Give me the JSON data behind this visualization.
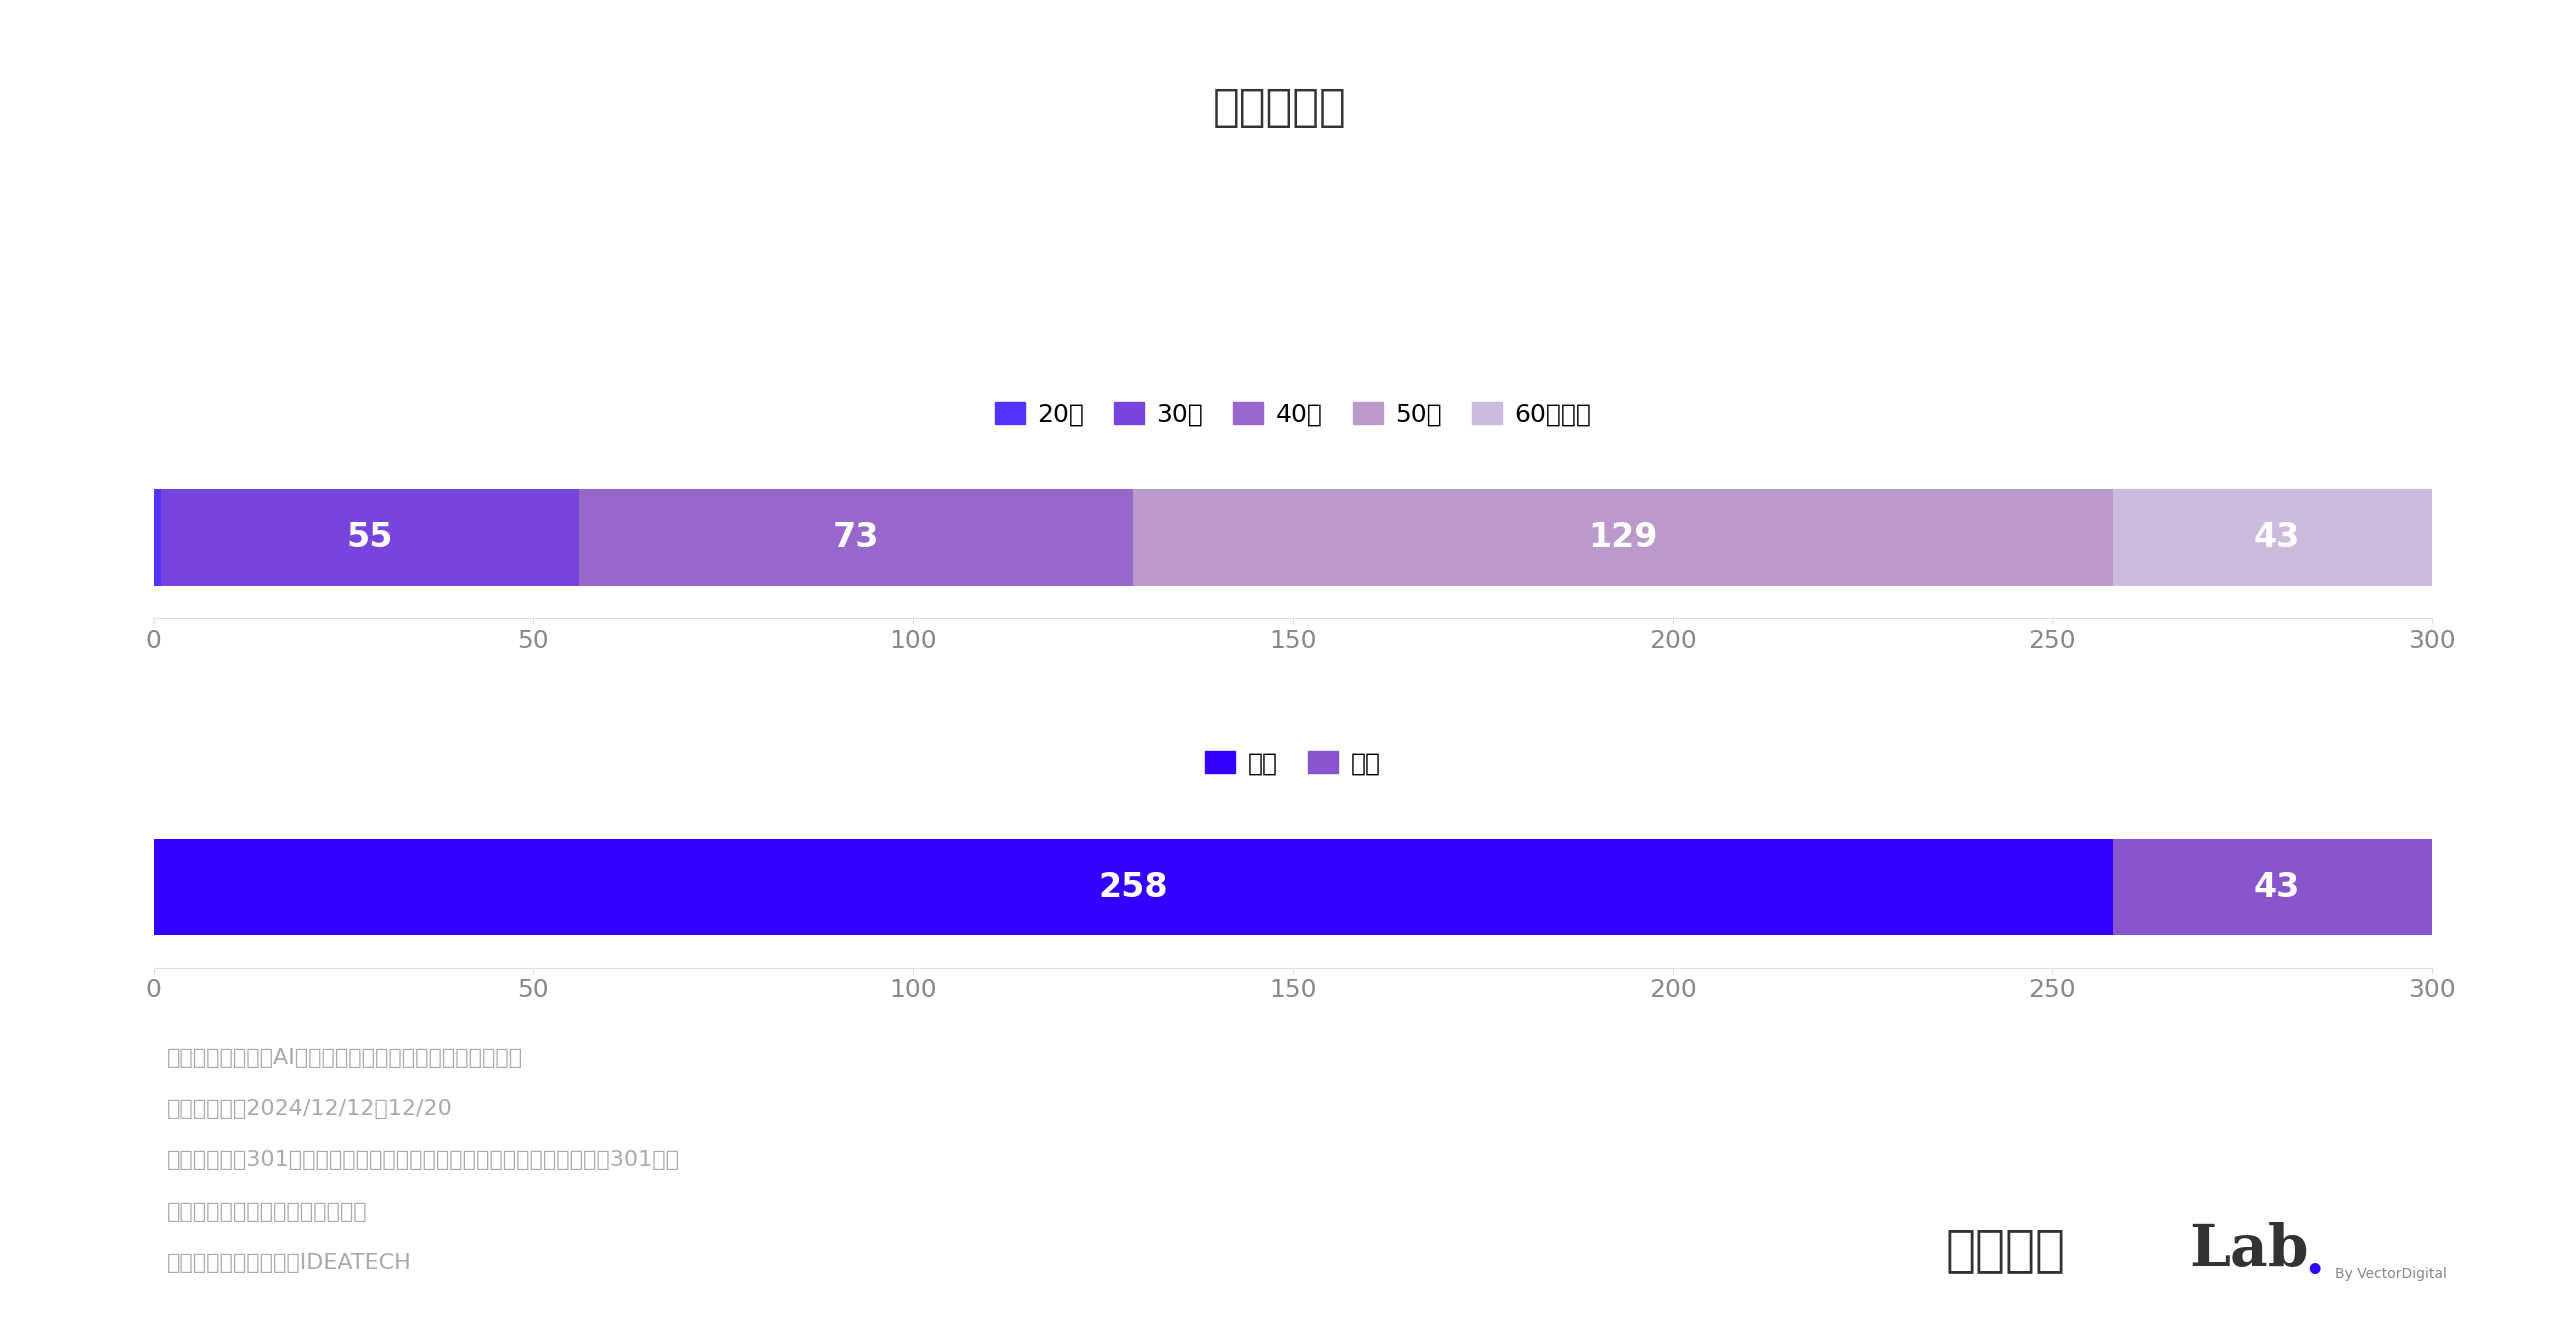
{
  "title": "性・年代別",
  "title_fontsize": 32,
  "background_color": "#ffffff",
  "age_data": {
    "values": [
      1,
      55,
      73,
      129,
      43
    ],
    "labels": [
      "20代",
      "30代",
      "40代",
      "50代",
      "60代以上"
    ],
    "colors": [
      "#5533ff",
      "#7744dd",
      "#9966cc",
      "#bb99cc",
      "#ccbbdd"
    ],
    "bar_height": 0.6
  },
  "gender_data": {
    "values": [
      258,
      43
    ],
    "labels": [
      "男性",
      "女性"
    ],
    "colors": [
      "#3300ff",
      "#8855cc"
    ],
    "bar_height": 0.6
  },
  "xlim": [
    0,
    300
  ],
  "xticks": [
    0,
    50,
    100,
    150,
    200,
    250,
    300
  ],
  "bar_label_fontsize": 24,
  "bar_label_color": "#ffffff",
  "tick_fontsize": 18,
  "legend_fontsize": 18,
  "footer_lines": [
    "》調査内容：生成AIに対するマーケターの意識調査結果》",
    "・調査期間：2024/12/12～12/20",
    "・調査対象：301名（事業会社に勤めているマーケティング部の管理職301名）",
    "・調査方法：インターネット調査",
    "・実施機関：株式会社IDEATECH"
  ],
  "footer_fontsize": 16,
  "footer_color": "#aaaaaa",
  "logo_japanese": "キーマケ",
  "logo_lab": "Lab.",
  "logo_sub": "By VectorDigital",
  "logo_japanese_color": "#333333",
  "logo_lab_color": "#333333",
  "logo_dot_color": "#3300ff",
  "logo_fontsize_jp": 36,
  "logo_fontsize_lab": 42
}
